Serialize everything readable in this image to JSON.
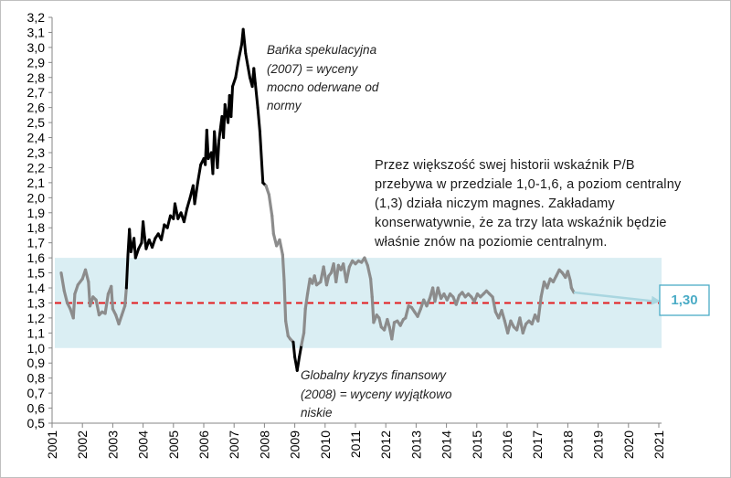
{
  "chart_data": {
    "type": "line",
    "title": "",
    "xlabel": "",
    "ylabel": "",
    "ylim": [
      0.5,
      3.2
    ],
    "xlim": [
      2001,
      2021
    ],
    "y_ticks": [
      "0,5",
      "0,6",
      "0,7",
      "0,8",
      "0,9",
      "1,0",
      "1,1",
      "1,2",
      "1,3",
      "1,4",
      "1,5",
      "1,6",
      "1,7",
      "1,8",
      "1,9",
      "2,0",
      "2,1",
      "2,2",
      "2,3",
      "2,4",
      "2,5",
      "2,6",
      "2,7",
      "2,8",
      "2,9",
      "3,0",
      "3,1",
      "3,2"
    ],
    "x_ticks": [
      "2001",
      "2002",
      "2003",
      "2004",
      "2005",
      "2006",
      "2007",
      "2008",
      "2009",
      "2010",
      "2011",
      "2012",
      "2013",
      "2014",
      "2015",
      "2016",
      "2017",
      "2018",
      "2019",
      "2020",
      "2021"
    ],
    "grid": false,
    "band": {
      "from": 1.0,
      "to": 1.6,
      "color": "#daeef3"
    },
    "reference_line": {
      "value": 1.3,
      "color": "#e31a1c",
      "style": "dashed"
    },
    "series": [
      {
        "color": "#000000",
        "segments_highlight": [
          [
            2003.45,
            2008.0
          ],
          [
            2008.95,
            2009.2
          ]
        ],
        "highlight_color": "#000000",
        "base_color": "#8c8c8c",
        "points": [
          [
            2001.3,
            1.5
          ],
          [
            2001.4,
            1.38
          ],
          [
            2001.5,
            1.3
          ],
          [
            2001.6,
            1.26
          ],
          [
            2001.7,
            1.2
          ],
          [
            2001.75,
            1.36
          ],
          [
            2001.85,
            1.42
          ],
          [
            2002.0,
            1.46
          ],
          [
            2002.1,
            1.52
          ],
          [
            2002.2,
            1.44
          ],
          [
            2002.25,
            1.28
          ],
          [
            2002.35,
            1.34
          ],
          [
            2002.45,
            1.32
          ],
          [
            2002.55,
            1.22
          ],
          [
            2002.65,
            1.24
          ],
          [
            2002.75,
            1.23
          ],
          [
            2002.85,
            1.36
          ],
          [
            2002.95,
            1.41
          ],
          [
            2003.0,
            1.26
          ],
          [
            2003.1,
            1.22
          ],
          [
            2003.2,
            1.16
          ],
          [
            2003.3,
            1.22
          ],
          [
            2003.4,
            1.28
          ],
          [
            2003.45,
            1.4
          ],
          [
            2003.5,
            1.62
          ],
          [
            2003.55,
            1.79
          ],
          [
            2003.6,
            1.64
          ],
          [
            2003.7,
            1.73
          ],
          [
            2003.75,
            1.6
          ],
          [
            2003.85,
            1.66
          ],
          [
            2003.95,
            1.7
          ],
          [
            2004.0,
            1.84
          ],
          [
            2004.05,
            1.74
          ],
          [
            2004.1,
            1.66
          ],
          [
            2004.2,
            1.72
          ],
          [
            2004.3,
            1.67
          ],
          [
            2004.4,
            1.73
          ],
          [
            2004.5,
            1.76
          ],
          [
            2004.6,
            1.72
          ],
          [
            2004.7,
            1.82
          ],
          [
            2004.8,
            1.8
          ],
          [
            2004.9,
            1.88
          ],
          [
            2005.0,
            1.86
          ],
          [
            2005.05,
            1.96
          ],
          [
            2005.15,
            1.86
          ],
          [
            2005.25,
            1.9
          ],
          [
            2005.35,
            1.84
          ],
          [
            2005.45,
            1.93
          ],
          [
            2005.55,
            2.0
          ],
          [
            2005.65,
            2.08
          ],
          [
            2005.7,
            1.96
          ],
          [
            2005.8,
            2.1
          ],
          [
            2005.9,
            2.22
          ],
          [
            2006.0,
            2.26
          ],
          [
            2006.05,
            2.22
          ],
          [
            2006.1,
            2.45
          ],
          [
            2006.15,
            2.26
          ],
          [
            2006.25,
            2.3
          ],
          [
            2006.3,
            2.16
          ],
          [
            2006.35,
            2.44
          ],
          [
            2006.45,
            2.2
          ],
          [
            2006.5,
            2.38
          ],
          [
            2006.6,
            2.54
          ],
          [
            2006.65,
            2.4
          ],
          [
            2006.7,
            2.62
          ],
          [
            2006.8,
            2.5
          ],
          [
            2006.85,
            2.68
          ],
          [
            2006.9,
            2.54
          ],
          [
            2006.95,
            2.74
          ],
          [
            2007.05,
            2.8
          ],
          [
            2007.15,
            2.92
          ],
          [
            2007.25,
            3.02
          ],
          [
            2007.3,
            3.12
          ],
          [
            2007.38,
            2.96
          ],
          [
            2007.45,
            2.88
          ],
          [
            2007.52,
            2.8
          ],
          [
            2007.6,
            2.74
          ],
          [
            2007.65,
            2.86
          ],
          [
            2007.7,
            2.76
          ],
          [
            2007.78,
            2.6
          ],
          [
            2007.85,
            2.44
          ],
          [
            2007.95,
            2.1
          ],
          [
            2008.05,
            2.08
          ],
          [
            2008.15,
            2.02
          ],
          [
            2008.25,
            1.88
          ],
          [
            2008.3,
            1.76
          ],
          [
            2008.4,
            1.68
          ],
          [
            2008.5,
            1.72
          ],
          [
            2008.6,
            1.62
          ],
          [
            2008.65,
            1.45
          ],
          [
            2008.7,
            1.18
          ],
          [
            2008.78,
            1.08
          ],
          [
            2008.85,
            1.06
          ],
          [
            2008.95,
            1.04
          ],
          [
            2009.0,
            0.94
          ],
          [
            2009.08,
            0.85
          ],
          [
            2009.15,
            0.94
          ],
          [
            2009.22,
            1.02
          ],
          [
            2009.3,
            1.1
          ],
          [
            2009.35,
            1.26
          ],
          [
            2009.42,
            1.36
          ],
          [
            2009.5,
            1.46
          ],
          [
            2009.58,
            1.43
          ],
          [
            2009.65,
            1.48
          ],
          [
            2009.72,
            1.42
          ],
          [
            2009.85,
            1.44
          ],
          [
            2009.95,
            1.54
          ],
          [
            2010.05,
            1.42
          ],
          [
            2010.12,
            1.48
          ],
          [
            2010.2,
            1.5
          ],
          [
            2010.28,
            1.56
          ],
          [
            2010.36,
            1.44
          ],
          [
            2010.44,
            1.55
          ],
          [
            2010.52,
            1.52
          ],
          [
            2010.6,
            1.56
          ],
          [
            2010.7,
            1.44
          ],
          [
            2010.8,
            1.54
          ],
          [
            2010.9,
            1.58
          ],
          [
            2011.0,
            1.56
          ],
          [
            2011.1,
            1.58
          ],
          [
            2011.2,
            1.57
          ],
          [
            2011.3,
            1.6
          ],
          [
            2011.4,
            1.55
          ],
          [
            2011.5,
            1.46
          ],
          [
            2011.55,
            1.34
          ],
          [
            2011.6,
            1.17
          ],
          [
            2011.7,
            1.22
          ],
          [
            2011.78,
            1.2
          ],
          [
            2011.85,
            1.14
          ],
          [
            2011.95,
            1.12
          ],
          [
            2012.05,
            1.19
          ],
          [
            2012.12,
            1.14
          ],
          [
            2012.2,
            1.06
          ],
          [
            2012.28,
            1.17
          ],
          [
            2012.38,
            1.18
          ],
          [
            2012.48,
            1.15
          ],
          [
            2012.58,
            1.19
          ],
          [
            2012.65,
            1.2
          ],
          [
            2012.75,
            1.28
          ],
          [
            2012.85,
            1.27
          ],
          [
            2012.95,
            1.24
          ],
          [
            2013.05,
            1.21
          ],
          [
            2013.15,
            1.26
          ],
          [
            2013.25,
            1.32
          ],
          [
            2013.35,
            1.28
          ],
          [
            2013.45,
            1.33
          ],
          [
            2013.55,
            1.4
          ],
          [
            2013.62,
            1.31
          ],
          [
            2013.72,
            1.4
          ],
          [
            2013.82,
            1.33
          ],
          [
            2013.92,
            1.36
          ],
          [
            2014.02,
            1.32
          ],
          [
            2014.12,
            1.36
          ],
          [
            2014.22,
            1.34
          ],
          [
            2014.32,
            1.29
          ],
          [
            2014.42,
            1.35
          ],
          [
            2014.52,
            1.37
          ],
          [
            2014.62,
            1.34
          ],
          [
            2014.72,
            1.36
          ],
          [
            2014.82,
            1.34
          ],
          [
            2014.92,
            1.31
          ],
          [
            2015.02,
            1.36
          ],
          [
            2015.12,
            1.34
          ],
          [
            2015.22,
            1.36
          ],
          [
            2015.32,
            1.38
          ],
          [
            2015.42,
            1.36
          ],
          [
            2015.52,
            1.34
          ],
          [
            2015.62,
            1.24
          ],
          [
            2015.72,
            1.2
          ],
          [
            2015.82,
            1.25
          ],
          [
            2015.92,
            1.18
          ],
          [
            2016.02,
            1.1
          ],
          [
            2016.12,
            1.18
          ],
          [
            2016.22,
            1.14
          ],
          [
            2016.32,
            1.12
          ],
          [
            2016.42,
            1.2
          ],
          [
            2016.52,
            1.1
          ],
          [
            2016.62,
            1.16
          ],
          [
            2016.72,
            1.18
          ],
          [
            2016.82,
            1.16
          ],
          [
            2016.92,
            1.22
          ],
          [
            2017.02,
            1.18
          ],
          [
            2017.12,
            1.34
          ],
          [
            2017.22,
            1.44
          ],
          [
            2017.32,
            1.4
          ],
          [
            2017.42,
            1.46
          ],
          [
            2017.52,
            1.44
          ],
          [
            2017.62,
            1.48
          ],
          [
            2017.72,
            1.52
          ],
          [
            2017.82,
            1.5
          ],
          [
            2017.92,
            1.47
          ],
          [
            2018.0,
            1.51
          ],
          [
            2018.08,
            1.45
          ],
          [
            2018.12,
            1.4
          ],
          [
            2018.2,
            1.37
          ]
        ]
      }
    ],
    "forecast": {
      "from": [
        2018.2,
        1.37
      ],
      "to": [
        2021.0,
        1.31
      ],
      "color": "#a9d6e0"
    },
    "callout_label": "1,30",
    "annotations": [
      {
        "lines": [
          "Bańka spekulacyjna",
          "(2007) = wyceny",
          "mocno oderwane od",
          "normy"
        ]
      },
      {
        "lines": [
          "Globalny kryzys finansowy",
          "(2008) = wyceny wyjątkowo",
          "niskie"
        ]
      }
    ],
    "text_block": {
      "lines": [
        "Przez większość swej historii wskaźnik P/B",
        "przebywa w przedziale 1,0-1,6, a poziom centralny",
        "(1,3) działa niczym magnes. Zakładamy",
        "konserwatywnie, że za trzy lata wskaźnik będzie",
        "właśnie znów na poziomie centralnym."
      ]
    }
  }
}
